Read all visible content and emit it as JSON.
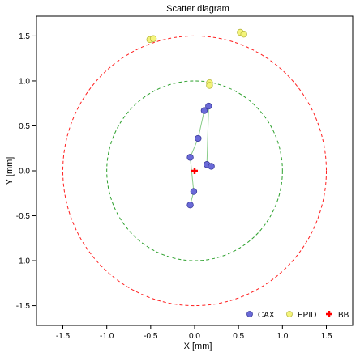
{
  "chart_data": {
    "type": "scatter",
    "title": "Scatter diagram",
    "xlabel": "X [mm]",
    "ylabel": "Y [mm]",
    "xlim": [
      -1.8,
      1.8
    ],
    "ylim": [
      -1.72,
      1.72
    ],
    "xticks": [
      -1.5,
      -1.0,
      -0.5,
      0.0,
      0.5,
      1.0,
      1.5
    ],
    "yticks": [
      -1.5,
      -1.0,
      -0.5,
      0.0,
      0.5,
      1.0,
      1.5
    ],
    "tick_labels": [
      "-1.5",
      "-1.0",
      "-0.5",
      "0.0",
      "0.5",
      "1.0",
      "1.5"
    ],
    "grid": false,
    "legend_position": "bottom-right",
    "circles": [
      {
        "radius": 1.0,
        "color": "#2ca02c",
        "style": "dashed"
      },
      {
        "radius": 1.5,
        "color": "#ff2020",
        "style": "dashed"
      }
    ],
    "series": [
      {
        "name": "CAX",
        "marker": "circle",
        "color": "#6a6ad8",
        "edge": "#3a3a9a",
        "line_color": "#88cc88",
        "connected": true,
        "points": [
          {
            "x": -0.05,
            "y": -0.38
          },
          {
            "x": -0.01,
            "y": -0.23
          },
          {
            "x": -0.05,
            "y": 0.15
          },
          {
            "x": 0.04,
            "y": 0.36
          },
          {
            "x": 0.11,
            "y": 0.67
          },
          {
            "x": 0.16,
            "y": 0.72
          },
          {
            "x": 0.14,
            "y": 0.07
          },
          {
            "x": 0.19,
            "y": 0.05
          }
        ]
      },
      {
        "name": "EPID",
        "marker": "circle",
        "color": "#f4f47a",
        "edge": "#b8b840",
        "connected": false,
        "points": [
          {
            "x": -0.51,
            "y": 1.46
          },
          {
            "x": -0.47,
            "y": 1.47
          },
          {
            "x": 0.52,
            "y": 1.54
          },
          {
            "x": 0.56,
            "y": 1.52
          },
          {
            "x": 0.17,
            "y": 0.98
          },
          {
            "x": 0.17,
            "y": 0.95
          }
        ]
      },
      {
        "name": "BB",
        "marker": "plus",
        "color": "#ff0000",
        "connected": false,
        "points": [
          {
            "x": 0.0,
            "y": 0.0
          }
        ]
      }
    ]
  }
}
